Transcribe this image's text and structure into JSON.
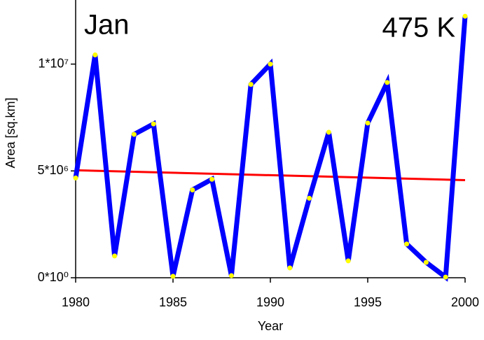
{
  "chart_data": {
    "type": "line",
    "annotations": [
      "Jan",
      "475 K"
    ],
    "x_label": "Year",
    "y_label": "Area [sq.km]",
    "x": [
      1980,
      1981,
      1982,
      1983,
      1984,
      1985,
      1986,
      1987,
      1988,
      1989,
      1990,
      1991,
      1992,
      1993,
      1994,
      1995,
      1996,
      1997,
      1998,
      1999,
      2000
    ],
    "series": [
      {
        "color": "#0000ff",
        "marker_color": "#ffff00",
        "values": [
          4670000,
          10430000,
          1020000,
          6710000,
          7200000,
          70000,
          4110000,
          4610000,
          100000,
          9050000,
          10000000,
          460000,
          3720000,
          6810000,
          790000,
          7240000,
          9140000,
          1580000,
          720000,
          30000,
          12240000
        ]
      }
    ],
    "trend": {
      "color": "#ff0000",
      "x": [
        1980,
        2000
      ],
      "values": [
        5030000,
        4570000
      ]
    },
    "xlim": [
      1980,
      2000
    ],
    "xticks": [
      1980,
      1985,
      1990,
      1995,
      2000
    ],
    "ylim": [
      0,
      13000000
    ],
    "yticks": [
      {
        "value": 0,
        "label": "0*10⁰"
      },
      {
        "value": 5000000,
        "label": "5*10⁶"
      },
      {
        "value": 10000000,
        "label": "1*10⁷"
      }
    ]
  }
}
